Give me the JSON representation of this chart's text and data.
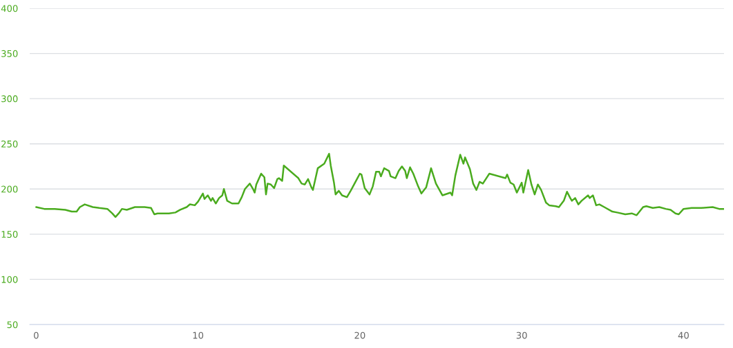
{
  "chart_data": {
    "type": "line",
    "color": "#4aab1e",
    "grid": "y",
    "marker": "none",
    "line_style": "solid",
    "x": [
      0,
      0.5,
      1.15,
      1.8,
      2.2,
      2.5,
      2.7,
      3.0,
      3.5,
      3.9,
      4.4,
      4.7,
      4.9,
      5.1,
      5.3,
      5.6,
      6.1,
      6.7,
      7.1,
      7.3,
      7.5,
      8.2,
      8.6,
      8.9,
      9.3,
      9.5,
      9.8,
      10.0,
      10.3,
      10.4,
      10.6,
      10.8,
      10.9,
      11.1,
      11.3,
      11.5,
      11.6,
      11.8,
      12.1,
      12.5,
      12.7,
      12.9,
      13.2,
      13.4,
      13.5,
      13.6,
      13.9,
      14.1,
      14.2,
      14.3,
      14.5,
      14.7,
      14.9,
      15.0,
      15.2,
      15.3,
      16.2,
      16.4,
      16.6,
      16.8,
      17.0,
      17.1,
      17.4,
      17.8,
      18.1,
      18.2,
      18.4,
      18.5,
      18.7,
      18.9,
      19.2,
      19.4,
      19.7,
      20.0,
      20.1,
      20.3,
      20.6,
      20.8,
      21.0,
      21.2,
      21.3,
      21.5,
      21.8,
      21.9,
      22.2,
      22.4,
      22.6,
      22.8,
      22.9,
      23.1,
      23.3,
      23.6,
      23.8,
      24.1,
      24.4,
      24.7,
      25.1,
      25.6,
      25.7,
      25.9,
      26.2,
      26.4,
      26.5,
      26.8,
      27.0,
      27.2,
      27.4,
      27.6,
      28.0,
      29.0,
      29.1,
      29.3,
      29.5,
      29.7,
      30.0,
      30.1,
      30.4,
      30.6,
      30.8,
      31.0,
      31.2,
      31.5,
      31.7,
      32.1,
      32.3,
      32.6,
      32.8,
      33.0,
      33.1,
      33.3,
      33.5,
      33.7,
      34.1,
      34.2,
      34.4,
      34.6,
      34.8,
      35.1,
      35.6,
      35.9,
      36.4,
      36.8,
      37.1,
      37.5,
      37.7,
      38.1,
      38.5,
      38.9,
      39.2,
      39.5,
      39.7,
      40.0,
      40.5,
      41.1,
      41.8,
      42.2,
      42.5
    ],
    "values": [
      180,
      178,
      178,
      177,
      175,
      175,
      180,
      183,
      180,
      179,
      178,
      173,
      169,
      173,
      178,
      177,
      180,
      180,
      179,
      172,
      173,
      173,
      174,
      177,
      180,
      183,
      182,
      186,
      195,
      189,
      193,
      187,
      190,
      184,
      190,
      193,
      200,
      187,
      184,
      184,
      191,
      200,
      206,
      200,
      196,
      205,
      217,
      213,
      194,
      206,
      205,
      201,
      211,
      212,
      209,
      226,
      212,
      206,
      205,
      211,
      202,
      199,
      223,
      228,
      239,
      226,
      207,
      194,
      198,
      193,
      191,
      197,
      207,
      217,
      216,
      201,
      194,
      203,
      219,
      219,
      214,
      223,
      220,
      214,
      212,
      220,
      225,
      220,
      212,
      224,
      217,
      203,
      195,
      202,
      223,
      206,
      193,
      196,
      193,
      215,
      238,
      228,
      235,
      222,
      206,
      199,
      208,
      206,
      217,
      212,
      216,
      207,
      205,
      196,
      207,
      196,
      221,
      205,
      194,
      205,
      199,
      185,
      182,
      181,
      180,
      187,
      197,
      190,
      187,
      190,
      183,
      187,
      193,
      190,
      193,
      182,
      183,
      180,
      175,
      174,
      172,
      173,
      171,
      180,
      181,
      179,
      180,
      178,
      177,
      173,
      172,
      178,
      179,
      179,
      180,
      178,
      178
    ],
    "xlim": [
      -0.4,
      42.5
    ],
    "ylim": [
      50,
      400
    ],
    "xticks": [
      0,
      10,
      20,
      30,
      40
    ],
    "yticks": [
      50,
      100,
      150,
      200,
      250,
      300,
      350,
      400
    ]
  }
}
